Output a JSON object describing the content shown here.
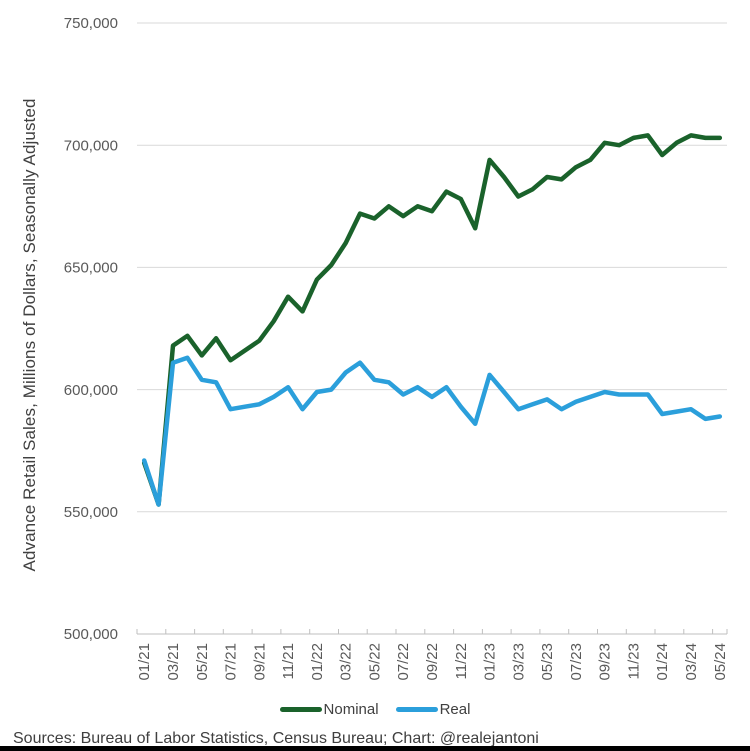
{
  "chart_data": {
    "type": "line",
    "title": "",
    "y_axis_title": "Advance Retail Sales, Millions of Dollars, Seasonally Adjusted",
    "ylim": [
      500000,
      750000
    ],
    "grid": "horizontal-only",
    "legend_position": "bottom",
    "x_tick_every": 2,
    "x": [
      "01/21",
      "02/21",
      "03/21",
      "04/21",
      "05/21",
      "06/21",
      "07/21",
      "08/21",
      "09/21",
      "10/21",
      "11/21",
      "12/21",
      "01/22",
      "02/22",
      "03/22",
      "04/22",
      "05/22",
      "06/22",
      "07/22",
      "08/22",
      "09/22",
      "10/22",
      "11/22",
      "12/22",
      "01/23",
      "02/23",
      "03/23",
      "04/23",
      "05/23",
      "06/23",
      "07/23",
      "08/23",
      "09/23",
      "10/23",
      "11/23",
      "12/23",
      "01/24",
      "02/24",
      "03/24",
      "04/24",
      "05/24"
    ],
    "y_ticks": [
      {
        "label": "750,000",
        "value": 750000
      },
      {
        "label": "700,000",
        "value": 700000
      },
      {
        "label": "650,000",
        "value": 650000
      },
      {
        "label": "600,000",
        "value": 600000
      },
      {
        "label": "550,000",
        "value": 550000
      },
      {
        "label": "500,000",
        "value": 500000
      }
    ],
    "series": [
      {
        "name": "Nominal",
        "color": "#1A622B",
        "values": [
          570000,
          553000,
          618000,
          622000,
          614000,
          621000,
          612000,
          616000,
          620000,
          628000,
          638000,
          632000,
          645000,
          651000,
          660000,
          672000,
          670000,
          675000,
          671000,
          675000,
          673000,
          681000,
          678000,
          666000,
          694000,
          687000,
          679000,
          682000,
          687000,
          686000,
          691000,
          694000,
          701000,
          700000,
          703000,
          704000,
          696000,
          701000,
          704000,
          703000,
          703000
        ]
      },
      {
        "name": "Real",
        "color": "#2B9FDB",
        "values": [
          571000,
          553000,
          611000,
          613000,
          604000,
          603000,
          592000,
          593000,
          594000,
          597000,
          601000,
          592000,
          599000,
          600000,
          607000,
          611000,
          604000,
          603000,
          598000,
          601000,
          597000,
          601000,
          593000,
          586000,
          606000,
          599000,
          592000,
          594000,
          596000,
          592000,
          595000,
          597000,
          599000,
          598000,
          598000,
          598000,
          590000,
          591000,
          592000,
          588000,
          589000
        ]
      }
    ],
    "colors": {
      "gridline": "#D9D9D9",
      "axis": "#BFBFBF",
      "tick_label": "#595959",
      "text": "#404040"
    }
  },
  "footer": {
    "sources": "Sources: Bureau of Labor Statistics, Census Bureau; Chart: @realejantoni"
  }
}
